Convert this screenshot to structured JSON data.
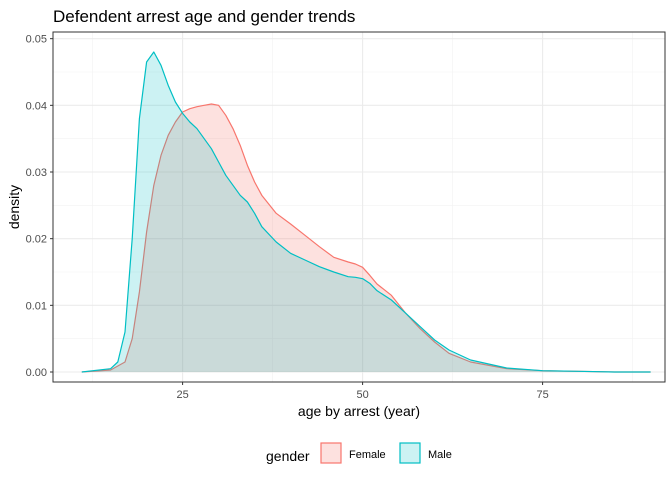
{
  "chart_data": {
    "type": "area",
    "title": "Defendent arrest age and gender trends",
    "xlabel": "age by arrest (year)",
    "ylabel": "density",
    "xlim": [
      7,
      92
    ],
    "ylim": [
      -0.0015,
      0.051
    ],
    "x_ticks": [
      25,
      50,
      75
    ],
    "y_ticks": [
      0.0,
      0.01,
      0.02,
      0.03,
      0.04,
      0.05
    ],
    "y_tick_labels": [
      "0.00",
      "0.01",
      "0.02",
      "0.03",
      "0.04",
      "0.05"
    ],
    "grid": true,
    "legend": {
      "title": "gender",
      "position": "bottom",
      "entries": [
        "Female",
        "Male"
      ]
    },
    "series": [
      {
        "name": "Female",
        "line_color": "#F8766D",
        "fill_color": "#F8766D",
        "fill_opacity": 0.22,
        "x": [
          11,
          15,
          17,
          18,
          19,
          20,
          21,
          22,
          23,
          24,
          25,
          26,
          27,
          28,
          29,
          30,
          31,
          32,
          33,
          34,
          35,
          36,
          38,
          40,
          42,
          44,
          46,
          48,
          49,
          50,
          51,
          52,
          54,
          56,
          58,
          60,
          62,
          65,
          70,
          75,
          80,
          85,
          90
        ],
        "y": [
          0.0,
          0.0003,
          0.0015,
          0.005,
          0.012,
          0.021,
          0.028,
          0.0325,
          0.0355,
          0.0375,
          0.039,
          0.0395,
          0.0398,
          0.04,
          0.0402,
          0.04,
          0.0385,
          0.0365,
          0.034,
          0.031,
          0.0285,
          0.0265,
          0.0238,
          0.0222,
          0.0205,
          0.0188,
          0.0172,
          0.0165,
          0.0162,
          0.0157,
          0.0145,
          0.0132,
          0.0115,
          0.0088,
          0.0065,
          0.0045,
          0.0028,
          0.0015,
          0.0005,
          0.0002,
          0.0001,
          0.0,
          0.0
        ]
      },
      {
        "name": "Male",
        "line_color": "#00BFC4",
        "fill_color": "#00BFC4",
        "fill_opacity": 0.2,
        "x": [
          11,
          15,
          16,
          17,
          18,
          19,
          20,
          21,
          22,
          23,
          24,
          25,
          26,
          27,
          28,
          29,
          30,
          31,
          32,
          33,
          34,
          35,
          36,
          38,
          40,
          42,
          44,
          46,
          48,
          49,
          50,
          51,
          52,
          54,
          56,
          58,
          60,
          62,
          65,
          70,
          75,
          80,
          85,
          90
        ],
        "y": [
          0.0,
          0.0005,
          0.0015,
          0.006,
          0.02,
          0.038,
          0.0465,
          0.048,
          0.046,
          0.043,
          0.0405,
          0.0388,
          0.0375,
          0.0365,
          0.035,
          0.0335,
          0.0315,
          0.0295,
          0.028,
          0.0265,
          0.0255,
          0.0238,
          0.0218,
          0.0195,
          0.0178,
          0.0168,
          0.0158,
          0.015,
          0.0143,
          0.0142,
          0.014,
          0.0133,
          0.0122,
          0.0108,
          0.0088,
          0.0068,
          0.0048,
          0.0033,
          0.0018,
          0.0006,
          0.0002,
          0.0001,
          0.0,
          0.0
        ]
      }
    ]
  }
}
